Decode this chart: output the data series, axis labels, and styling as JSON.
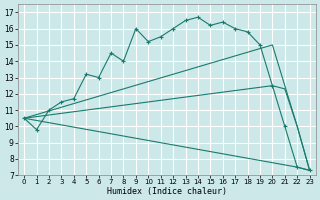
{
  "xlabel": "Humidex (Indice chaleur)",
  "bg_color": "#cce8e8",
  "line_color": "#1a7a6e",
  "grid_color": "#ffffff",
  "xlim": [
    -0.5,
    23.5
  ],
  "ylim": [
    7,
    17.5
  ],
  "yticks": [
    7,
    8,
    9,
    10,
    11,
    12,
    13,
    14,
    15,
    16,
    17
  ],
  "xticks": [
    0,
    1,
    2,
    3,
    4,
    5,
    6,
    7,
    8,
    9,
    10,
    11,
    12,
    13,
    14,
    15,
    16,
    17,
    18,
    19,
    20,
    21,
    22,
    23
  ],
  "main_line": {
    "x": [
      0,
      1,
      2,
      3,
      4,
      5,
      6,
      7,
      8,
      9,
      10,
      11,
      12,
      13,
      14,
      15,
      16,
      17,
      18,
      19,
      20,
      21,
      22,
      23
    ],
    "y": [
      10.5,
      9.8,
      11.0,
      11.5,
      11.7,
      13.2,
      13.0,
      14.5,
      14.0,
      16.0,
      15.2,
      15.5,
      16.0,
      16.5,
      16.7,
      16.2,
      16.4,
      16.0,
      15.8,
      15.0,
      12.5,
      10.0,
      7.5,
      7.3
    ]
  },
  "fan_lines": [
    {
      "x": [
        0,
        20,
        21,
        22,
        23
      ],
      "y": [
        10.5,
        15.0,
        12.5,
        10.0,
        7.3
      ]
    },
    {
      "x": [
        0,
        20,
        21,
        22,
        23
      ],
      "y": [
        10.5,
        12.5,
        12.3,
        10.0,
        7.3
      ]
    },
    {
      "x": [
        0,
        22,
        23
      ],
      "y": [
        10.5,
        7.5,
        7.3
      ]
    }
  ]
}
